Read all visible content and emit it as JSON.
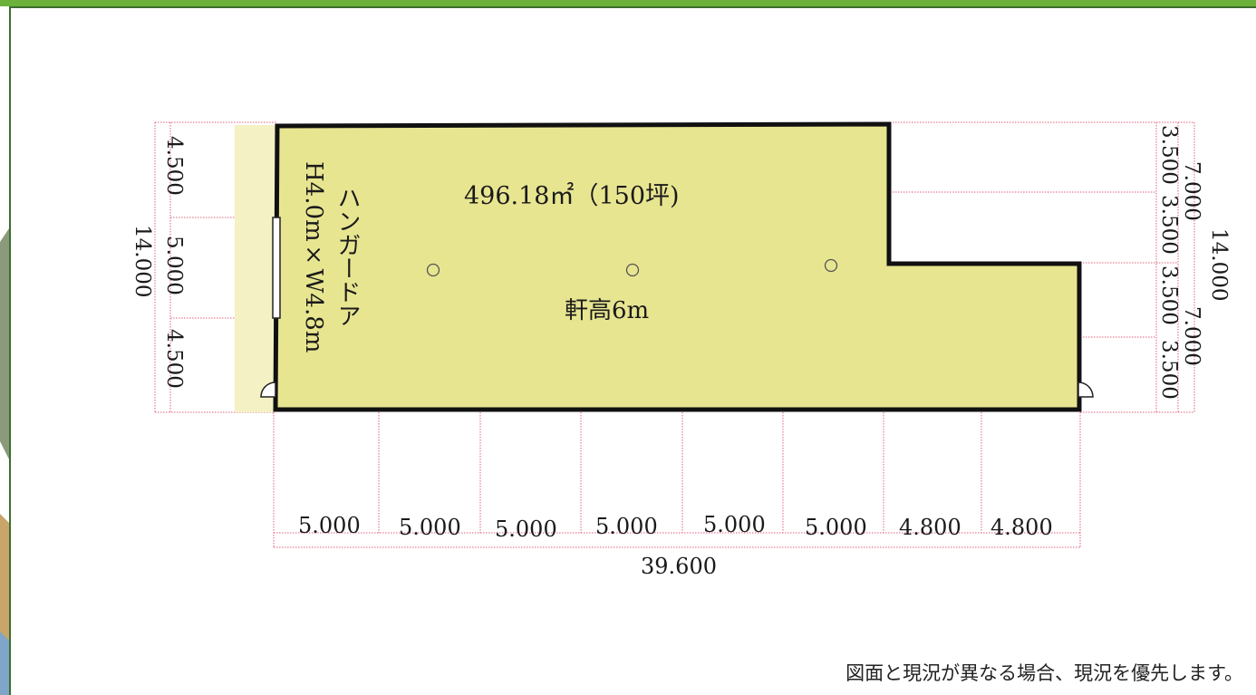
{
  "colors": {
    "floor": "#e8e591",
    "pale_strip": "#f4f1c4",
    "wall": "#111111",
    "dim_line": "#e0607a",
    "accent": "#6cb23a"
  },
  "plan": {
    "area": "496.18㎡（150坪)",
    "ceiling_height": "軒高6m",
    "door": {
      "name": "ハンガードア",
      "size": "H4.0m×W4.8m"
    }
  },
  "dimensions": {
    "bottom": [
      "5.000",
      "5.000",
      "5.000",
      "5.000",
      "5.000",
      "5.000",
      "4.800",
      "4.800"
    ],
    "bottom_total": "39.600",
    "left": [
      "4.500",
      "5.000",
      "4.500"
    ],
    "left_total": "14.000",
    "right_inner": [
      "3.500",
      "3.500",
      "3.500",
      "3.500"
    ],
    "right_mid": [
      "7.000",
      "7.000"
    ],
    "right_total": "14.000"
  },
  "note": "図面と現況が異なる場合、現況を優先します。"
}
